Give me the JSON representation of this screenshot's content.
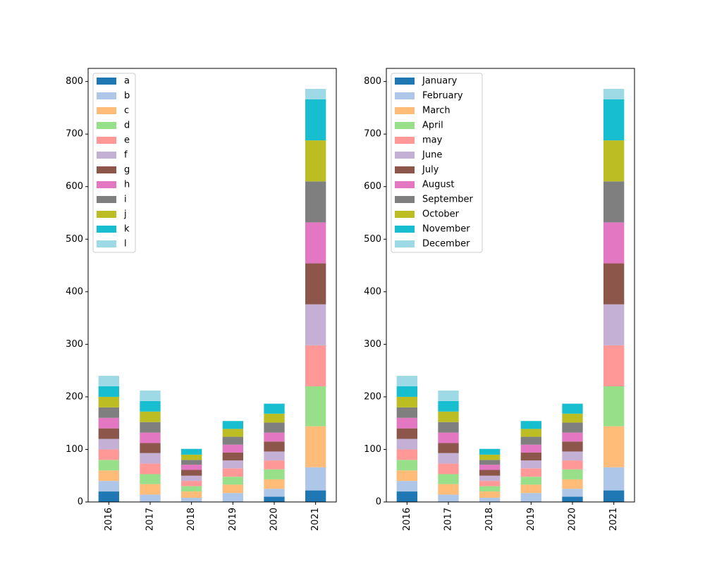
{
  "colors": [
    "#1f77b4",
    "#aec7e8",
    "#ffbb78",
    "#98df8a",
    "#ff9896",
    "#c5b0d5",
    "#8c564b",
    "#e377c2",
    "#7f7f7f",
    "#bcbd22",
    "#17becf",
    "#9edae5"
  ],
  "chart_data": [
    {
      "type": "bar",
      "stacked": true,
      "categories": [
        "2016",
        "2017",
        "2018",
        "2019",
        "2020",
        "2021"
      ],
      "ylim": [
        0,
        825
      ],
      "yticks": [
        0,
        100,
        200,
        300,
        400,
        500,
        600,
        700,
        800
      ],
      "legend_position": "top-left",
      "series": [
        {
          "name": "a",
          "values": [
            20,
            0,
            0,
            0,
            10,
            22
          ]
        },
        {
          "name": "b",
          "values": [
            20,
            14,
            8,
            17,
            15,
            44
          ]
        },
        {
          "name": "c",
          "values": [
            20,
            20,
            12,
            16,
            18,
            78
          ]
        },
        {
          "name": "d",
          "values": [
            20,
            19,
            10,
            15,
            19,
            76
          ]
        },
        {
          "name": "e",
          "values": [
            20,
            20,
            10,
            16,
            17,
            78
          ]
        },
        {
          "name": "f",
          "values": [
            20,
            20,
            10,
            15,
            17,
            78
          ]
        },
        {
          "name": "g",
          "values": [
            20,
            19,
            11,
            15,
            19,
            78
          ]
        },
        {
          "name": "h",
          "values": [
            20,
            20,
            10,
            15,
            17,
            78
          ]
        },
        {
          "name": "i",
          "values": [
            20,
            20,
            9,
            15,
            19,
            78
          ]
        },
        {
          "name": "j",
          "values": [
            20,
            20,
            10,
            15,
            17,
            78
          ]
        },
        {
          "name": "k",
          "values": [
            20,
            20,
            11,
            15,
            19,
            78
          ]
        },
        {
          "name": "l",
          "values": [
            20,
            20,
            0,
            0,
            0,
            20
          ]
        }
      ]
    },
    {
      "type": "bar",
      "stacked": true,
      "categories": [
        "2016",
        "2017",
        "2018",
        "2019",
        "2020",
        "2021"
      ],
      "ylim": [
        0,
        825
      ],
      "yticks": [
        0,
        100,
        200,
        300,
        400,
        500,
        600,
        700,
        800
      ],
      "legend_position": "top-left",
      "series": [
        {
          "name": "January",
          "values": [
            20,
            0,
            0,
            0,
            10,
            22
          ]
        },
        {
          "name": "February",
          "values": [
            20,
            14,
            8,
            17,
            15,
            44
          ]
        },
        {
          "name": "March",
          "values": [
            20,
            20,
            12,
            16,
            18,
            78
          ]
        },
        {
          "name": "April",
          "values": [
            20,
            19,
            10,
            15,
            19,
            76
          ]
        },
        {
          "name": "may",
          "values": [
            20,
            20,
            10,
            16,
            17,
            78
          ]
        },
        {
          "name": "June",
          "values": [
            20,
            20,
            10,
            15,
            17,
            78
          ]
        },
        {
          "name": "July",
          "values": [
            20,
            19,
            11,
            15,
            19,
            78
          ]
        },
        {
          "name": "August",
          "values": [
            20,
            20,
            10,
            15,
            17,
            78
          ]
        },
        {
          "name": "September",
          "values": [
            20,
            20,
            9,
            15,
            19,
            78
          ]
        },
        {
          "name": "October",
          "values": [
            20,
            20,
            10,
            15,
            17,
            78
          ]
        },
        {
          "name": "November",
          "values": [
            20,
            20,
            11,
            15,
            19,
            78
          ]
        },
        {
          "name": "December",
          "values": [
            20,
            20,
            0,
            0,
            0,
            20
          ]
        }
      ]
    }
  ]
}
